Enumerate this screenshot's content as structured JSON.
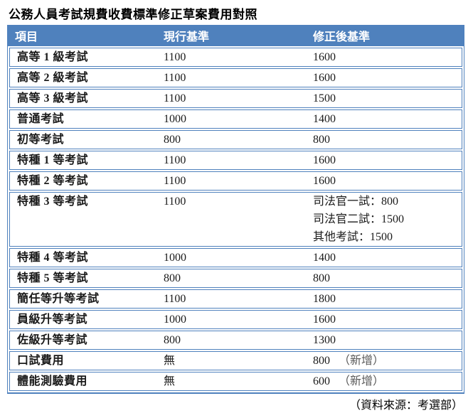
{
  "title": "公務人員考試規費收費標準修正草案費用對照",
  "source_note": "（資料來源：考選部）",
  "colors": {
    "header_bg": "#4F81BD",
    "row_border": "#4F81BD",
    "header_text": "#FFFFFF",
    "note_text": "#595959"
  },
  "table": {
    "columns": {
      "item": "項目",
      "current": "現行基準",
      "revised": "修正後基準"
    },
    "rows": [
      {
        "item": "高等 1 級考試",
        "current": "1100",
        "revised": "1600"
      },
      {
        "item": "高等 2 級考試",
        "current": "1100",
        "revised": "1600"
      },
      {
        "item": "高等 3 級考試",
        "current": "1100",
        "revised": "1500"
      },
      {
        "item": "普通考試",
        "current": "1000",
        "revised": "1400"
      },
      {
        "item": "初等考試",
        "current": "800",
        "revised": "800"
      },
      {
        "item": "特種 1 等考試",
        "current": "1100",
        "revised": "1600"
      },
      {
        "item": "特種 2 等考試",
        "current": "1100",
        "revised": "1600"
      },
      {
        "item": "特種 3 等考試",
        "current": "1100",
        "revised": [
          "司法官一試：800",
          "司法官二試：1500",
          "其他考試：1500"
        ]
      },
      {
        "item": "特種 4 等考試",
        "current": "1000",
        "revised": "1400"
      },
      {
        "item": "特種 5 等考試",
        "current": "800",
        "revised": "800"
      },
      {
        "item": "簡任等升等考試",
        "current": "1100",
        "revised": "1800"
      },
      {
        "item": "員級升等考試",
        "current": "1000",
        "revised": "1600"
      },
      {
        "item": "佐級升等考試",
        "current": "800",
        "revised": "1300"
      },
      {
        "item": "口試費用",
        "current": "無",
        "revised": "800",
        "note": "（新增）"
      },
      {
        "item": "體能測驗費用",
        "current": "無",
        "revised": "600",
        "note": "（新增）"
      }
    ]
  }
}
